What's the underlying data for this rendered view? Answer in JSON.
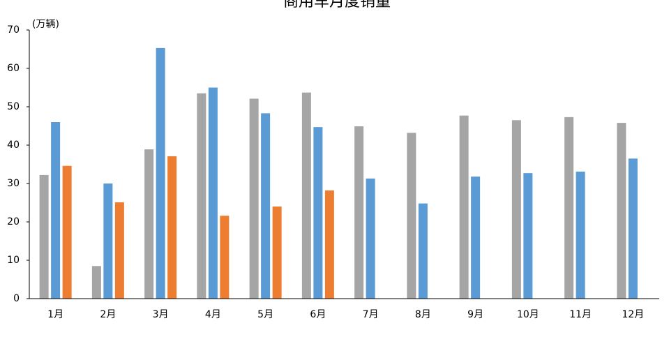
{
  "chart_data": {
    "type": "bar",
    "title": "商用车月度销量",
    "y_label": "(万辆)",
    "categories": [
      "1月",
      "2月",
      "3月",
      "4月",
      "5月",
      "6月",
      "7月",
      "8月",
      "9月",
      "10月",
      "11月",
      "12月"
    ],
    "series": [
      {
        "color": "#a5a5a5",
        "values": [
          32.2,
          8.5,
          38.9,
          53.5,
          52.1,
          53.7,
          44.9,
          43.2,
          47.7,
          46.5,
          47.3,
          45.8
        ]
      },
      {
        "color": "#5b9bd5",
        "values": [
          46.0,
          30.0,
          65.3,
          55.0,
          48.3,
          44.7,
          31.3,
          24.8,
          31.8,
          32.7,
          33.1,
          36.5
        ]
      },
      {
        "color": "#ed7d31",
        "values": [
          34.6,
          25.1,
          37.1,
          21.6,
          24.0,
          28.2,
          null,
          null,
          null,
          null,
          null,
          null
        ]
      }
    ],
    "ylim": [
      0,
      70
    ],
    "yticks": [
      0,
      10,
      20,
      30,
      40,
      50,
      60,
      70
    ]
  }
}
